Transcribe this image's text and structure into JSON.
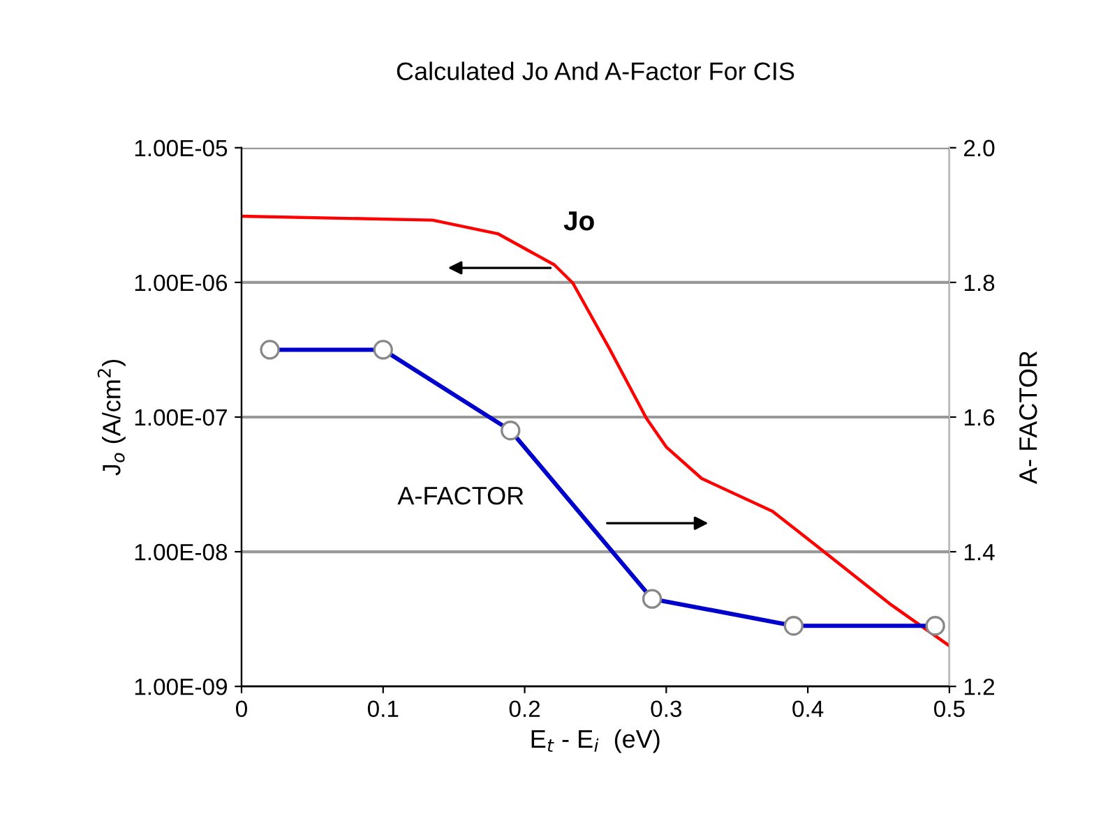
{
  "chart_data": {
    "type": "line",
    "title": "Calculated Jo And A-Factor For CIS",
    "xlabel": "E$_{t}$ - E$_{i}$  (eV)",
    "ylabel": "J$_{o}$ (A/cm$^{2}$)",
    "y2label": "A- FACTOR",
    "log": "y",
    "grid": "y",
    "xlim": [
      0,
      0.5
    ],
    "xticks": [
      0,
      0.1,
      0.2,
      0.3,
      0.4,
      0.5
    ],
    "ylim": [
      1e-09,
      1e-05
    ],
    "yticks": [
      {
        "value": 1e-09,
        "label": "1.00E-09"
      },
      {
        "value": 1e-08,
        "label": "1.00E-08"
      },
      {
        "value": 1e-07,
        "label": "1.00E-07"
      },
      {
        "value": 1e-06,
        "label": "1.00E-06"
      },
      {
        "value": 1e-05,
        "label": "1.00E-05"
      }
    ],
    "y2lim": [
      1.2,
      2.0
    ],
    "y2ticks": [
      {
        "value": 1.2,
        "label": "1.2"
      },
      {
        "value": 1.4,
        "label": "1.4"
      },
      {
        "value": 1.6,
        "label": "1.6"
      },
      {
        "value": 1.8,
        "label": "1.8"
      },
      {
        "value": 2.0,
        "label": "2.0"
      }
    ],
    "series": [
      {
        "name": "Jo",
        "color": "#ff0000",
        "marker": "none",
        "x": [
          0,
          0.135,
          0.181,
          0.221,
          0.234,
          0.26,
          0.286,
          0.3,
          0.325,
          0.375,
          0.408,
          0.458,
          0.5
        ],
        "values": [
          3.1e-06,
          2.9e-06,
          2.3e-06,
          1.35e-06,
          9.9e-07,
          3.2e-07,
          9.8e-08,
          6e-08,
          3.5e-08,
          2e-08,
          1.07e-08,
          4.1e-09,
          2e-09
        ]
      },
      {
        "name": "A-FACTOR",
        "color": "#0000cc",
        "marker": "circle",
        "axis": "y2",
        "x": [
          0.02,
          0.1,
          0.19,
          0.29,
          0.39,
          0.49
        ],
        "values": [
          1.7,
          1.7,
          1.58,
          1.33,
          1.29,
          1.29
        ]
      }
    ]
  }
}
